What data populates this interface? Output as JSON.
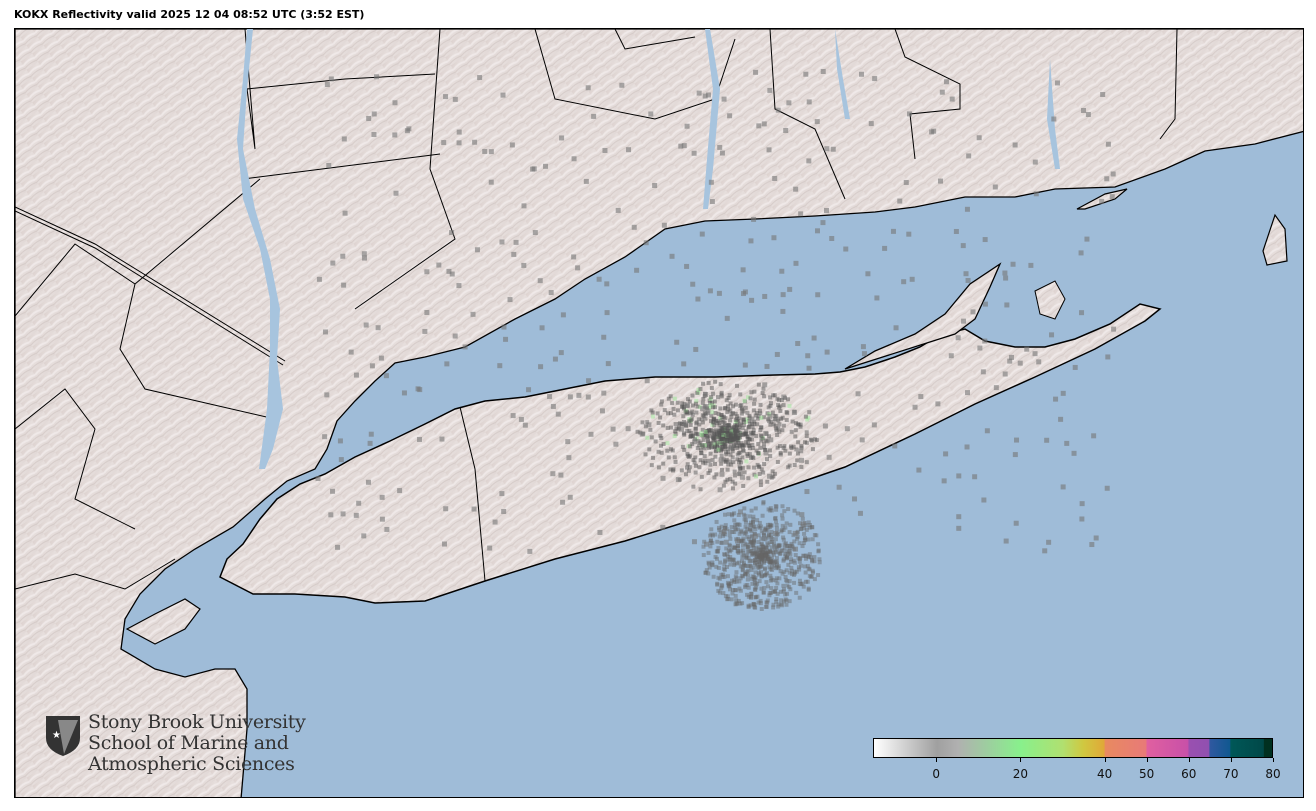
{
  "title": "KOKX Reflectivity valid 2025 12 04 08:52 UTC (3:52 EST)",
  "map": {
    "radar_site": "KOKX",
    "product": "Reflectivity",
    "colors": {
      "ocean": "#9fbcd8",
      "land": "#e2d8d6",
      "border": "#000000",
      "lakes": "#a7c4de"
    }
  },
  "colorbar": {
    "min": -15,
    "max": 80,
    "ticks": [
      "0",
      "20",
      "40",
      "50",
      "60",
      "70",
      "80"
    ],
    "tick_values": [
      0,
      20,
      40,
      50,
      60,
      70,
      80
    ],
    "stops": [
      {
        "v": -15,
        "c": "#ffffff"
      },
      {
        "v": 0,
        "c": "#a0a0a0"
      },
      {
        "v": 5,
        "c": "#b0b0b0"
      },
      {
        "v": 20,
        "c": "#88f08c"
      },
      {
        "v": 30,
        "c": "#b0e070"
      },
      {
        "v": 35,
        "c": "#d0c840"
      },
      {
        "v": 40,
        "c": "#e0a838"
      },
      {
        "v": 40.1,
        "c": "#e88a60"
      },
      {
        "v": 50,
        "c": "#e87a78"
      },
      {
        "v": 50.1,
        "c": "#e060a0"
      },
      {
        "v": 60,
        "c": "#c850a8"
      },
      {
        "v": 60.1,
        "c": "#9a50b0"
      },
      {
        "v": 65,
        "c": "#9050b0"
      },
      {
        "v": 65.1,
        "c": "#3058a0"
      },
      {
        "v": 70,
        "c": "#105890"
      },
      {
        "v": 70.1,
        "c": "#005858"
      },
      {
        "v": 78,
        "c": "#004848"
      },
      {
        "v": 78.1,
        "c": "#003020"
      },
      {
        "v": 80,
        "c": "#003020"
      }
    ]
  },
  "logo": {
    "lines": [
      "Stony Brook University",
      "School of Marine and",
      "Atmospheric Sciences"
    ]
  }
}
